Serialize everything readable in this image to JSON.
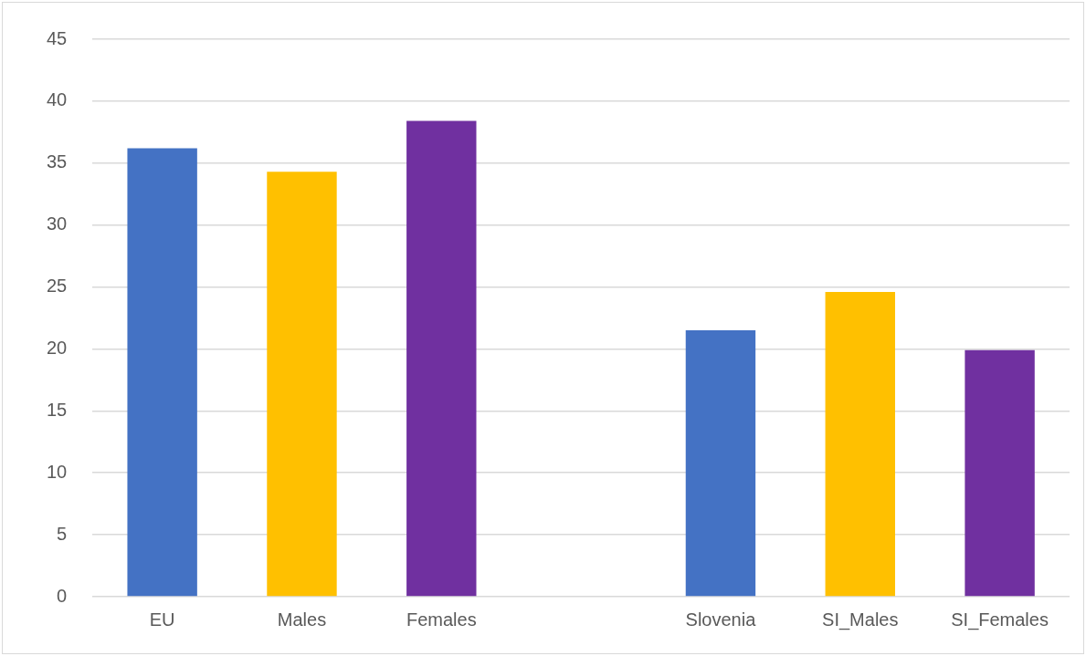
{
  "chart_data": {
    "type": "bar",
    "categories": [
      "EU",
      "Males",
      "Females",
      null,
      "Slovenia",
      "SI_Males",
      "SI_Females"
    ],
    "values": [
      36.2,
      34.3,
      38.4,
      null,
      21.5,
      24.6,
      19.9
    ],
    "colors": [
      "#4472c4",
      "#ffc000",
      "#7030a0",
      "#4472c4",
      "#4472c4",
      "#ffc000",
      "#7030a0"
    ],
    "ylim": [
      0,
      45
    ],
    "yticks": [
      0,
      5,
      10,
      15,
      20,
      25,
      30,
      35,
      40,
      45
    ],
    "grid": "y",
    "legend": false
  }
}
